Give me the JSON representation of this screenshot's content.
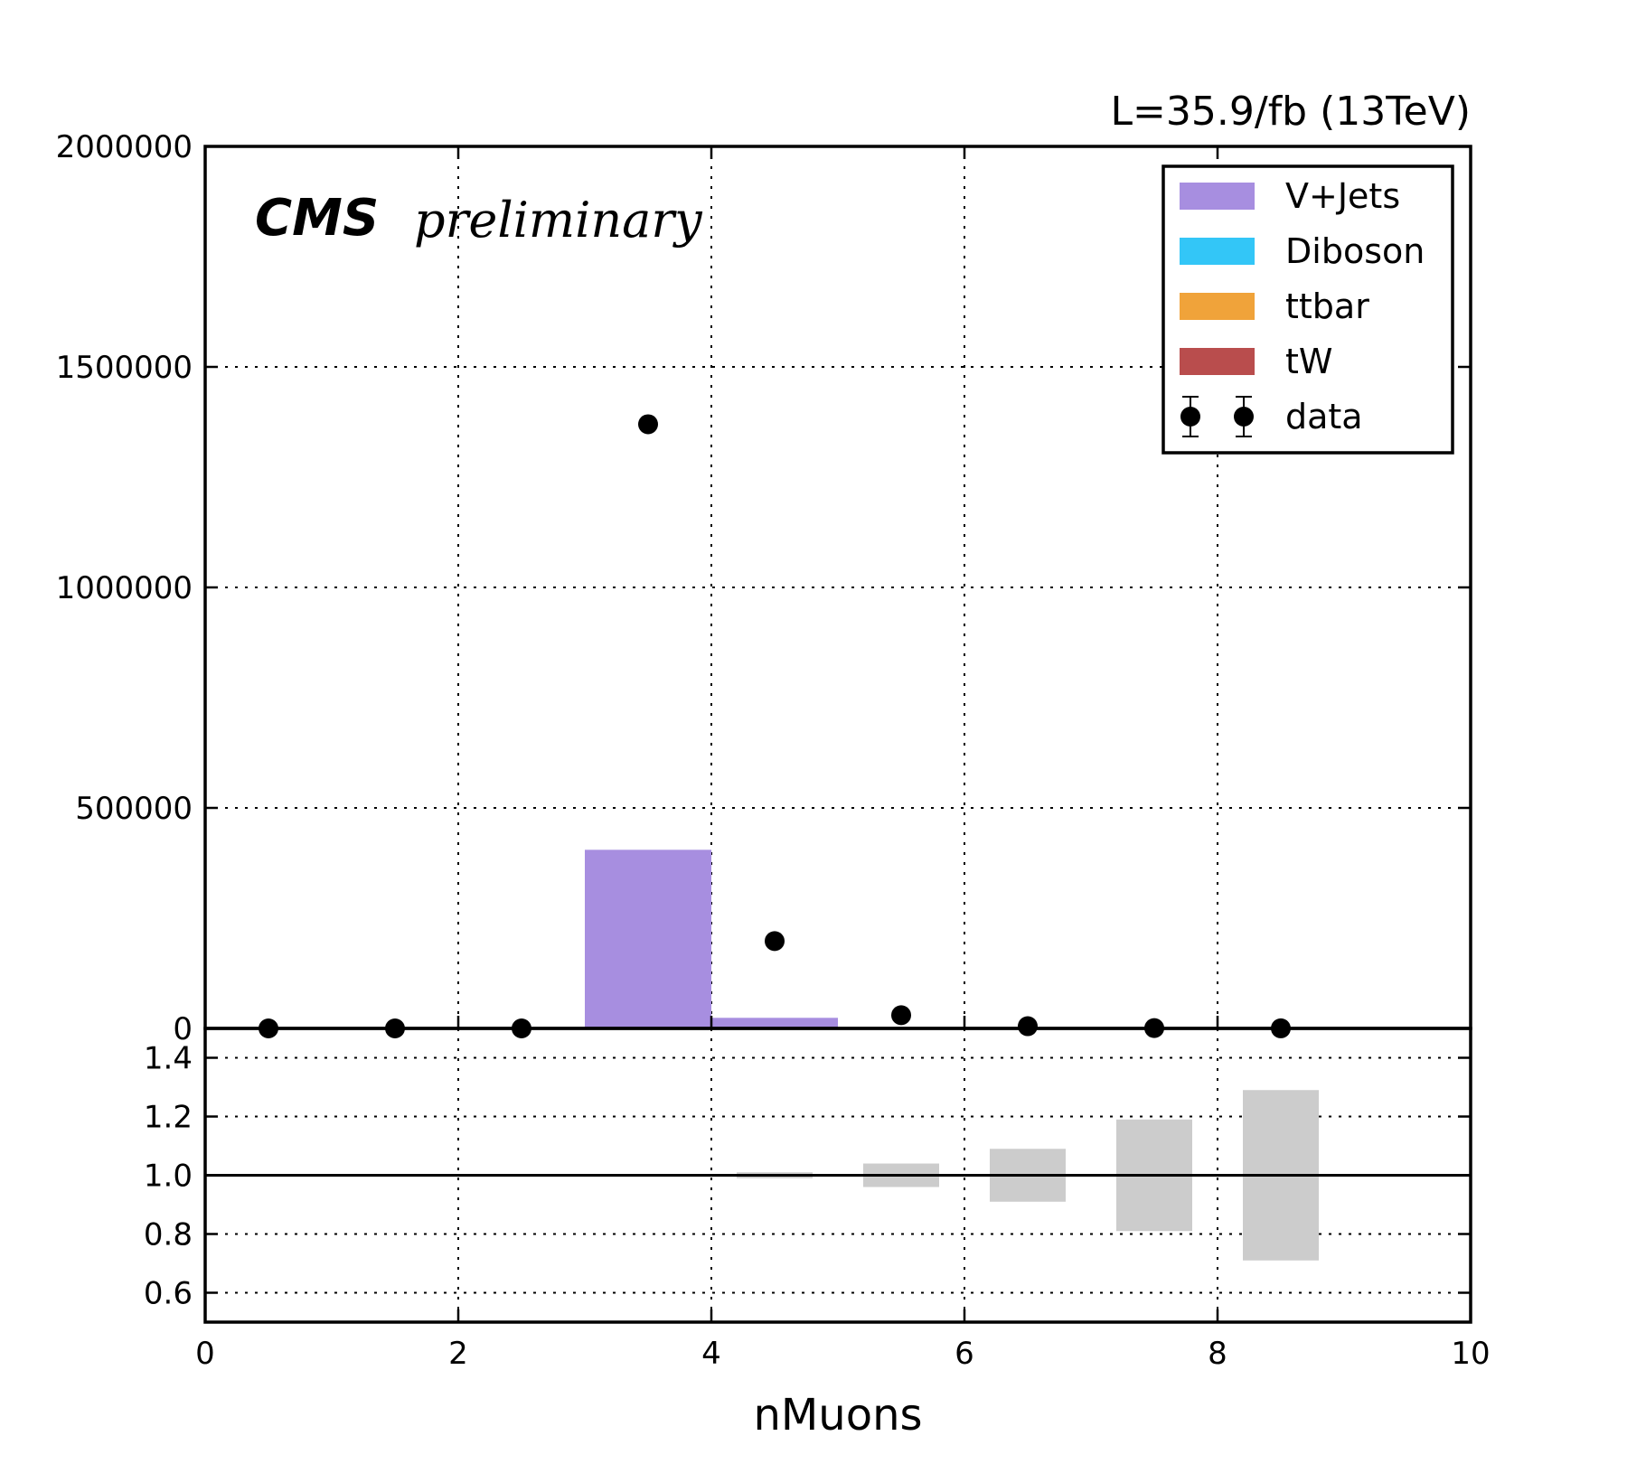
{
  "header": {
    "lumi_label": "L=35.9/fb (13TeV)",
    "cms_label": "CMS",
    "preliminary_label": "preliminary"
  },
  "chart_data": {
    "type": "bar",
    "xlabel": "nMuons",
    "ylabel": "",
    "xlim": [
      0,
      10
    ],
    "ylim": [
      0,
      2000000
    ],
    "x_ticks": [
      "0",
      "2",
      "4",
      "6",
      "8",
      "10"
    ],
    "y_ticks": [
      "0",
      "500000",
      "1000000",
      "1500000",
      "2000000"
    ],
    "grid": true,
    "legend_position": "top-right",
    "legend": [
      {
        "name": "V+Jets",
        "color": "#a78ee0",
        "kind": "fill"
      },
      {
        "name": "Diboson",
        "color": "#33c6f7",
        "kind": "fill"
      },
      {
        "name": "ttbar",
        "color": "#f0a33a",
        "kind": "fill"
      },
      {
        "name": "tW",
        "color": "#b94d4d",
        "kind": "fill"
      },
      {
        "name": "data",
        "color": "#000000",
        "kind": "marker"
      }
    ],
    "stack": [
      {
        "name": "V+Jets",
        "color": "#a78ee0",
        "bins": [
          [
            3,
            4,
            405000
          ],
          [
            4,
            5,
            24000
          ]
        ]
      }
    ],
    "data_points": {
      "x": [
        0.5,
        1.5,
        2.5,
        3.5,
        4.5,
        5.5,
        6.5,
        7.5,
        8.5
      ],
      "y": [
        0,
        0,
        0,
        1370000,
        198000,
        30000,
        5000,
        800,
        150
      ]
    },
    "ratio": {
      "ylim": [
        0.5,
        1.5
      ],
      "y_ticks": [
        "0.6",
        "0.8",
        "1.0",
        "1.2",
        "1.4"
      ],
      "reference": 1.0,
      "uncertainty_color": "#cccccc",
      "bands": [
        {
          "x": 4.5,
          "low": 0.99,
          "high": 1.01
        },
        {
          "x": 5.5,
          "low": 0.96,
          "high": 1.04
        },
        {
          "x": 6.5,
          "low": 0.91,
          "high": 1.09
        },
        {
          "x": 7.5,
          "low": 0.81,
          "high": 1.19
        },
        {
          "x": 8.5,
          "low": 0.71,
          "high": 1.29
        }
      ]
    }
  }
}
